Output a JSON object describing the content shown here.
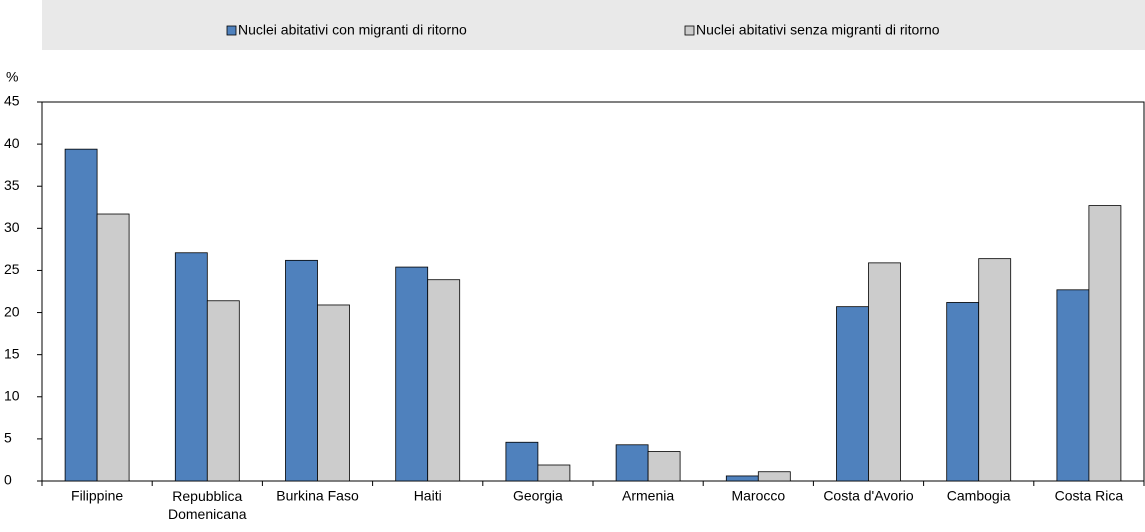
{
  "chart_data": {
    "type": "bar",
    "y_unit_label": "%",
    "categories": [
      "Filippine",
      "Repubblica Domenicana",
      "Burkina Faso",
      "Haiti",
      "Georgia",
      "Armenia",
      "Marocco",
      "Costa d'Avorio",
      "Cambogia",
      "Costa Rica"
    ],
    "series": [
      {
        "name": "Nuclei abitativi con migranti di ritorno",
        "color": "#4f81bd",
        "values": [
          39.4,
          27.1,
          26.2,
          25.4,
          4.6,
          4.3,
          0.6,
          20.7,
          21.2,
          22.7
        ]
      },
      {
        "name": "Nuclei abitativi senza migranti di ritorno",
        "color": "#cccccc",
        "values": [
          31.7,
          21.4,
          20.9,
          23.9,
          1.9,
          3.5,
          1.1,
          25.9,
          26.4,
          32.7
        ]
      }
    ],
    "ylim": [
      0,
      45
    ],
    "yticks": [
      0,
      5,
      10,
      15,
      20,
      25,
      30,
      35,
      40,
      45
    ],
    "grid": false,
    "legend": "top"
  }
}
